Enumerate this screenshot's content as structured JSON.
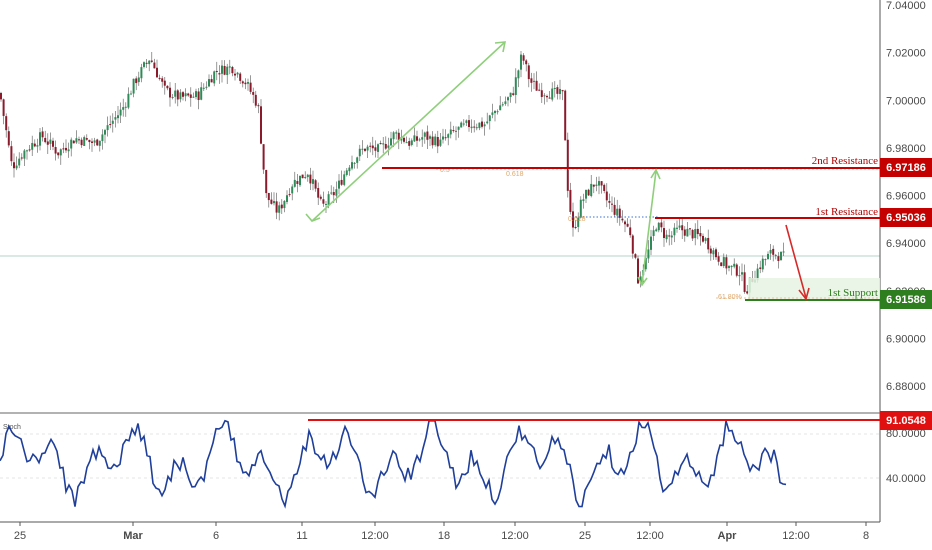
{
  "chart_data": {
    "type": "candlestick",
    "price_axis": {
      "ylim": [
        6.86,
        7.045
      ],
      "tick_labels": [
        "7.04000",
        "7.02000",
        "7.00000",
        "6.98000",
        "6.96000",
        "6.94000",
        "6.92000",
        "6.90000",
        "6.88000"
      ]
    },
    "time_axis": {
      "tick_labels": [
        "25",
        "Mar",
        "6",
        "11",
        "12:00",
        "18",
        "12:00",
        "25",
        "12:00",
        "Apr",
        "12:00",
        "8"
      ]
    },
    "levels": [
      {
        "name": "2nd Resistance",
        "value": "6.97186",
        "color": "#c40000"
      },
      {
        "name": "1st Resistance",
        "value": "6.95036",
        "color": "#c40000"
      },
      {
        "name": "1st Support",
        "value": "6.91586",
        "color": "#2e7d1e"
      }
    ],
    "fib_labels": [
      "0.5",
      "0.618",
      "0.618",
      "61.80%"
    ],
    "price_path": [
      [
        0,
        7.003
      ],
      [
        12,
        6.972
      ],
      [
        25,
        6.979
      ],
      [
        42,
        6.985
      ],
      [
        58,
        6.978
      ],
      [
        75,
        6.984
      ],
      [
        95,
        6.982
      ],
      [
        110,
        6.99
      ],
      [
        122,
        6.996
      ],
      [
        135,
        7.008
      ],
      [
        150,
        7.018
      ],
      [
        165,
        7.004
      ],
      [
        180,
        7.001
      ],
      [
        198,
        7.002
      ],
      [
        215,
        7.012
      ],
      [
        232,
        7.014
      ],
      [
        245,
        7.008
      ],
      [
        258,
        6.998
      ],
      [
        266,
        6.96
      ],
      [
        278,
        6.953
      ],
      [
        292,
        6.965
      ],
      [
        308,
        6.97
      ],
      [
        322,
        6.955
      ],
      [
        336,
        6.962
      ],
      [
        350,
        6.974
      ],
      [
        365,
        6.98
      ],
      [
        380,
        6.979
      ],
      [
        395,
        6.986
      ],
      [
        410,
        6.982
      ],
      [
        425,
        6.985
      ],
      [
        440,
        6.982
      ],
      [
        455,
        6.987
      ],
      [
        470,
        6.99
      ],
      [
        485,
        6.99
      ],
      [
        498,
        6.997
      ],
      [
        512,
        7.002
      ],
      [
        522,
        7.019
      ],
      [
        530,
        7.008
      ],
      [
        540,
        7.004
      ],
      [
        552,
        7.003
      ],
      [
        563,
        7.002
      ],
      [
        568,
        6.962
      ],
      [
        573,
        6.945
      ],
      [
        582,
        6.958
      ],
      [
        596,
        6.966
      ],
      [
        608,
        6.957
      ],
      [
        620,
        6.951
      ],
      [
        630,
        6.945
      ],
      [
        638,
        6.925
      ],
      [
        646,
        6.933
      ],
      [
        656,
        6.948
      ],
      [
        668,
        6.942
      ],
      [
        680,
        6.946
      ],
      [
        692,
        6.944
      ],
      [
        704,
        6.942
      ],
      [
        716,
        6.935
      ],
      [
        728,
        6.93
      ],
      [
        740,
        6.928
      ],
      [
        746,
        6.92
      ],
      [
        752,
        6.925
      ],
      [
        762,
        6.932
      ],
      [
        772,
        6.936
      ],
      [
        784,
        6.934
      ]
    ],
    "oscillator": {
      "name": "Stoch",
      "scale_marks": [
        80,
        40
      ],
      "scale_labels": [
        "80.0000",
        "40.0000"
      ],
      "ylim": [
        10,
        100
      ],
      "level_value": "91.0548"
    }
  }
}
